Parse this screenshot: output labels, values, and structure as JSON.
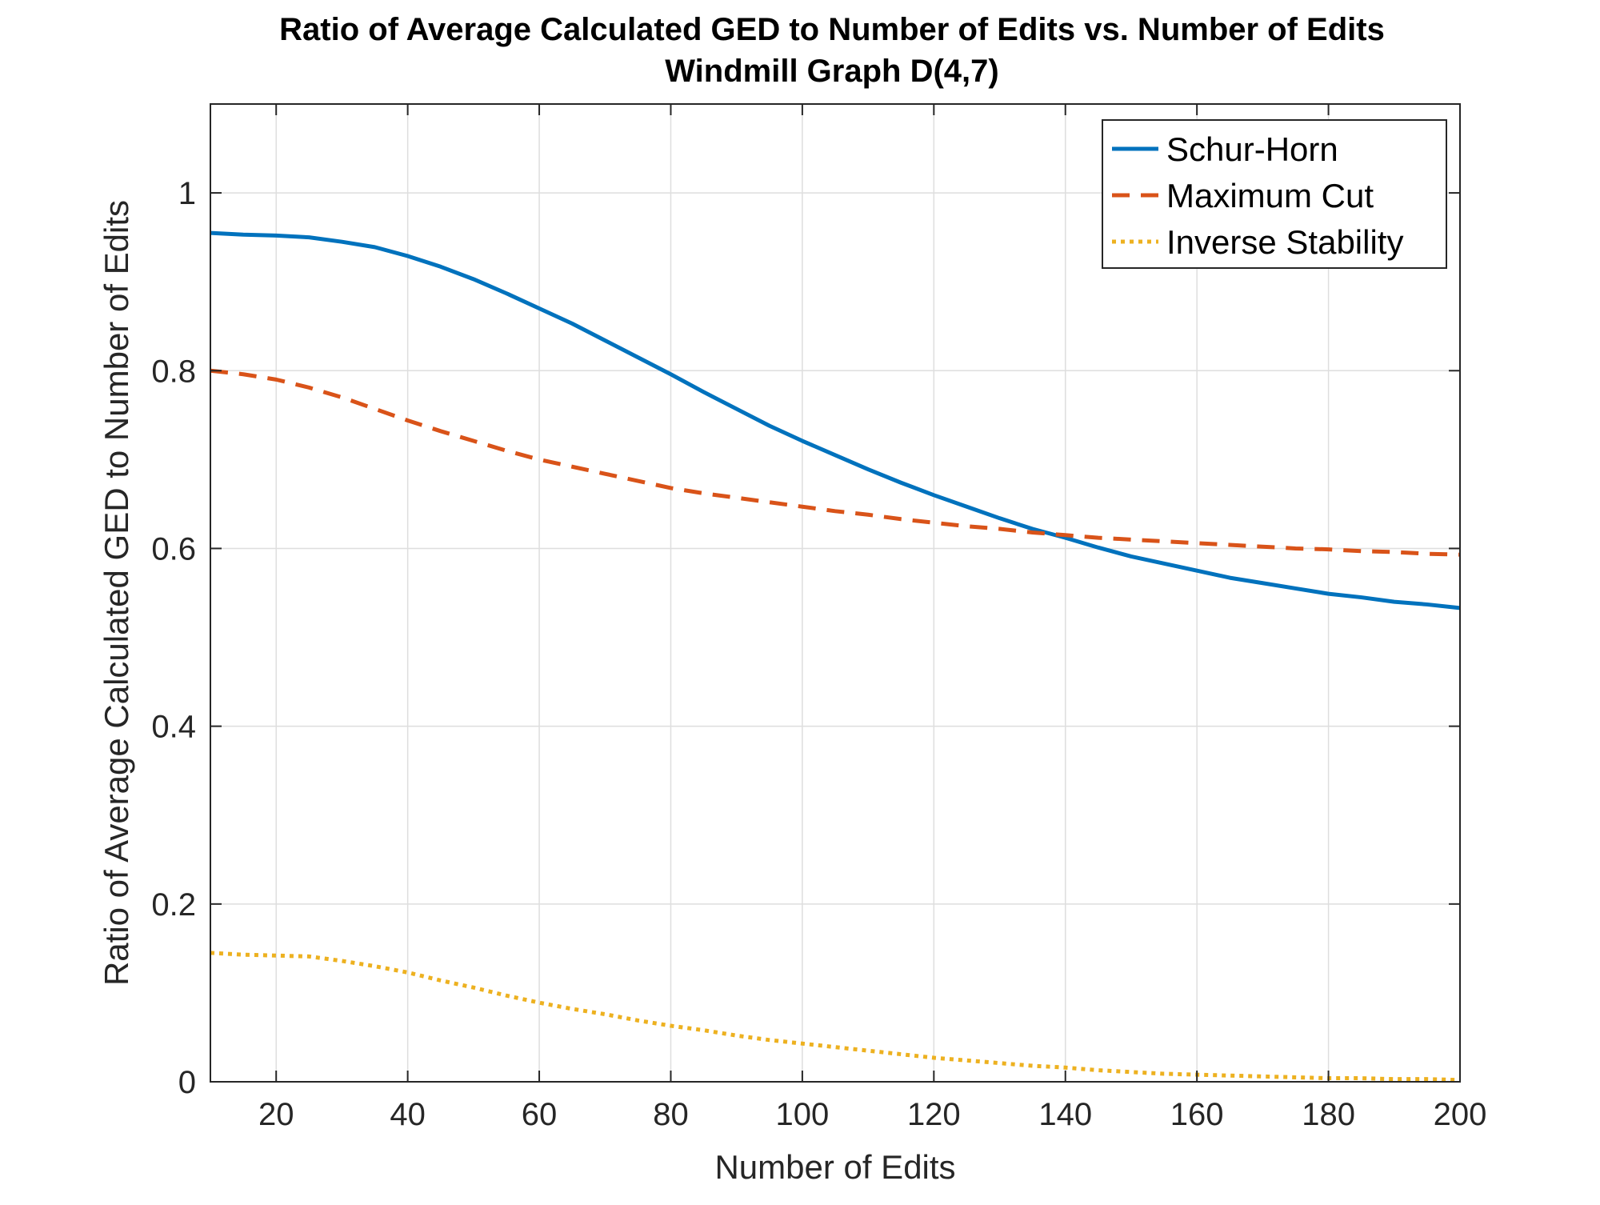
{
  "chart_data": {
    "type": "line",
    "title": "Ratio of Average Calculated GED to Number of Edits vs. Number of Edits",
    "subtitle": "Windmill Graph D(4,7)",
    "xlabel": "Number of Edits",
    "ylabel": "Ratio of Average Calculated GED to Number of Edits",
    "xlim": [
      10,
      200
    ],
    "ylim": [
      0,
      1.1
    ],
    "xticks": [
      20,
      40,
      60,
      80,
      100,
      120,
      140,
      160,
      180,
      200
    ],
    "xtick_labels": [
      "20",
      "40",
      "60",
      "80",
      "100",
      "120",
      "140",
      "160",
      "180",
      "200"
    ],
    "yticks": [
      0,
      0.2,
      0.4,
      0.6,
      0.8,
      1
    ],
    "ytick_labels": [
      "0",
      "0.2",
      "0.4",
      "0.6",
      "0.8",
      "1"
    ],
    "grid": true,
    "legend_position": "top-right",
    "x": [
      10,
      15,
      20,
      25,
      30,
      35,
      40,
      45,
      50,
      55,
      60,
      65,
      70,
      75,
      80,
      85,
      90,
      95,
      100,
      105,
      110,
      115,
      120,
      125,
      130,
      135,
      140,
      145,
      150,
      155,
      160,
      165,
      170,
      175,
      180,
      185,
      190,
      195,
      200
    ],
    "series": [
      {
        "name": "Schur-Horn",
        "color": "#0072BD",
        "style": "solid",
        "values": [
          0.955,
          0.953,
          0.952,
          0.95,
          0.945,
          0.939,
          0.929,
          0.917,
          0.903,
          0.887,
          0.87,
          0.853,
          0.834,
          0.815,
          0.796,
          0.776,
          0.757,
          0.738,
          0.721,
          0.705,
          0.689,
          0.674,
          0.66,
          0.647,
          0.634,
          0.622,
          0.612,
          0.601,
          0.591,
          0.583,
          0.575,
          0.567,
          0.561,
          0.555,
          0.549,
          0.545,
          0.54,
          0.537,
          0.533
        ]
      },
      {
        "name": "Maximum Cut",
        "color": "#D95319",
        "style": "dashed",
        "values": [
          0.8,
          0.796,
          0.79,
          0.781,
          0.77,
          0.757,
          0.744,
          0.732,
          0.721,
          0.71,
          0.7,
          0.692,
          0.684,
          0.676,
          0.668,
          0.662,
          0.657,
          0.652,
          0.647,
          0.642,
          0.638,
          0.633,
          0.629,
          0.625,
          0.622,
          0.618,
          0.615,
          0.612,
          0.61,
          0.608,
          0.606,
          0.604,
          0.602,
          0.6,
          0.599,
          0.597,
          0.596,
          0.594,
          0.593
        ]
      },
      {
        "name": "Inverse Stability",
        "color": "#EDB120",
        "style": "dotted",
        "values": [
          0.145,
          0.143,
          0.142,
          0.141,
          0.136,
          0.13,
          0.123,
          0.114,
          0.106,
          0.097,
          0.089,
          0.082,
          0.076,
          0.069,
          0.063,
          0.058,
          0.052,
          0.047,
          0.043,
          0.039,
          0.035,
          0.031,
          0.027,
          0.024,
          0.021,
          0.018,
          0.016,
          0.013,
          0.011,
          0.009,
          0.008,
          0.007,
          0.006,
          0.005,
          0.004,
          0.004,
          0.003,
          0.003,
          0.002
        ]
      }
    ]
  }
}
